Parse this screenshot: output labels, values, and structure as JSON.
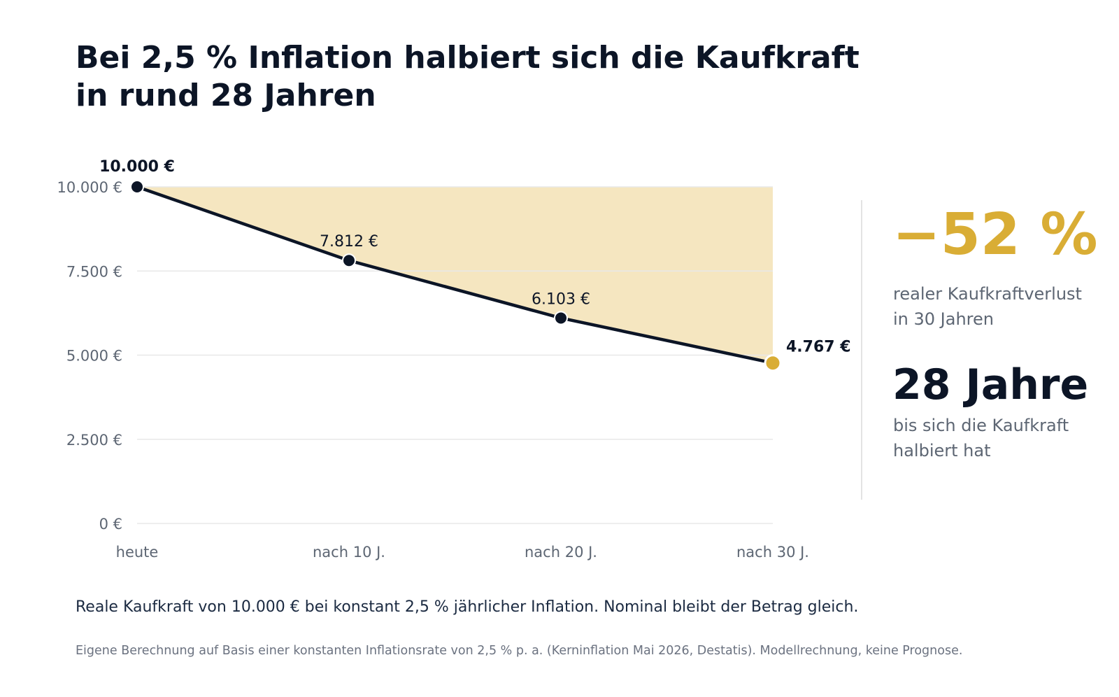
{
  "title": {
    "line1": "Bei 2,5 % Inflation halbiert sich die Kaufkraft",
    "line2": "in rund 28 Jahren"
  },
  "chart_data": {
    "type": "line",
    "area_fill": true,
    "categories": [
      "heute",
      "nach 10 J.",
      "nach 20 J.",
      "nach 30 J."
    ],
    "values": [
      10000,
      7812,
      6103,
      4767
    ],
    "value_labels": [
      "10.000 €",
      "7.812 €",
      "6.103 €",
      "4.767 €"
    ],
    "ylim": [
      0,
      10000
    ],
    "yticks": [
      0,
      2500,
      5000,
      7500,
      10000
    ],
    "ytick_labels": [
      "0 €",
      "2.500 €",
      "5.000 €",
      "7.500 €",
      "10.000 €"
    ],
    "grid": true,
    "colors": {
      "line": "#0c1526",
      "area": "#f5e6c0",
      "highlight_point": "#d9ad35",
      "grid": "#e8e8e8"
    }
  },
  "stats": {
    "loss_value": "−52 %",
    "loss_label_line1": "realer Kaufkraftverlust",
    "loss_label_line2": "in 30 Jahren",
    "years_value": "28 Jahre",
    "years_label_line1": "bis sich die Kaufkraft",
    "years_label_line2": "halbiert hat",
    "accent_color": "#d9ad35"
  },
  "caption": "Reale Kaufkraft von 10.000 € bei konstant 2,5 % jährlicher Inflation. Nominal bleibt der Betrag gleich.",
  "source": "Eigene Berechnung auf Basis einer konstanten Inflationsrate von 2,5 % p. a. (Kerninflation Mai 2026, Destatis). Modellrechnung, keine Prognose."
}
